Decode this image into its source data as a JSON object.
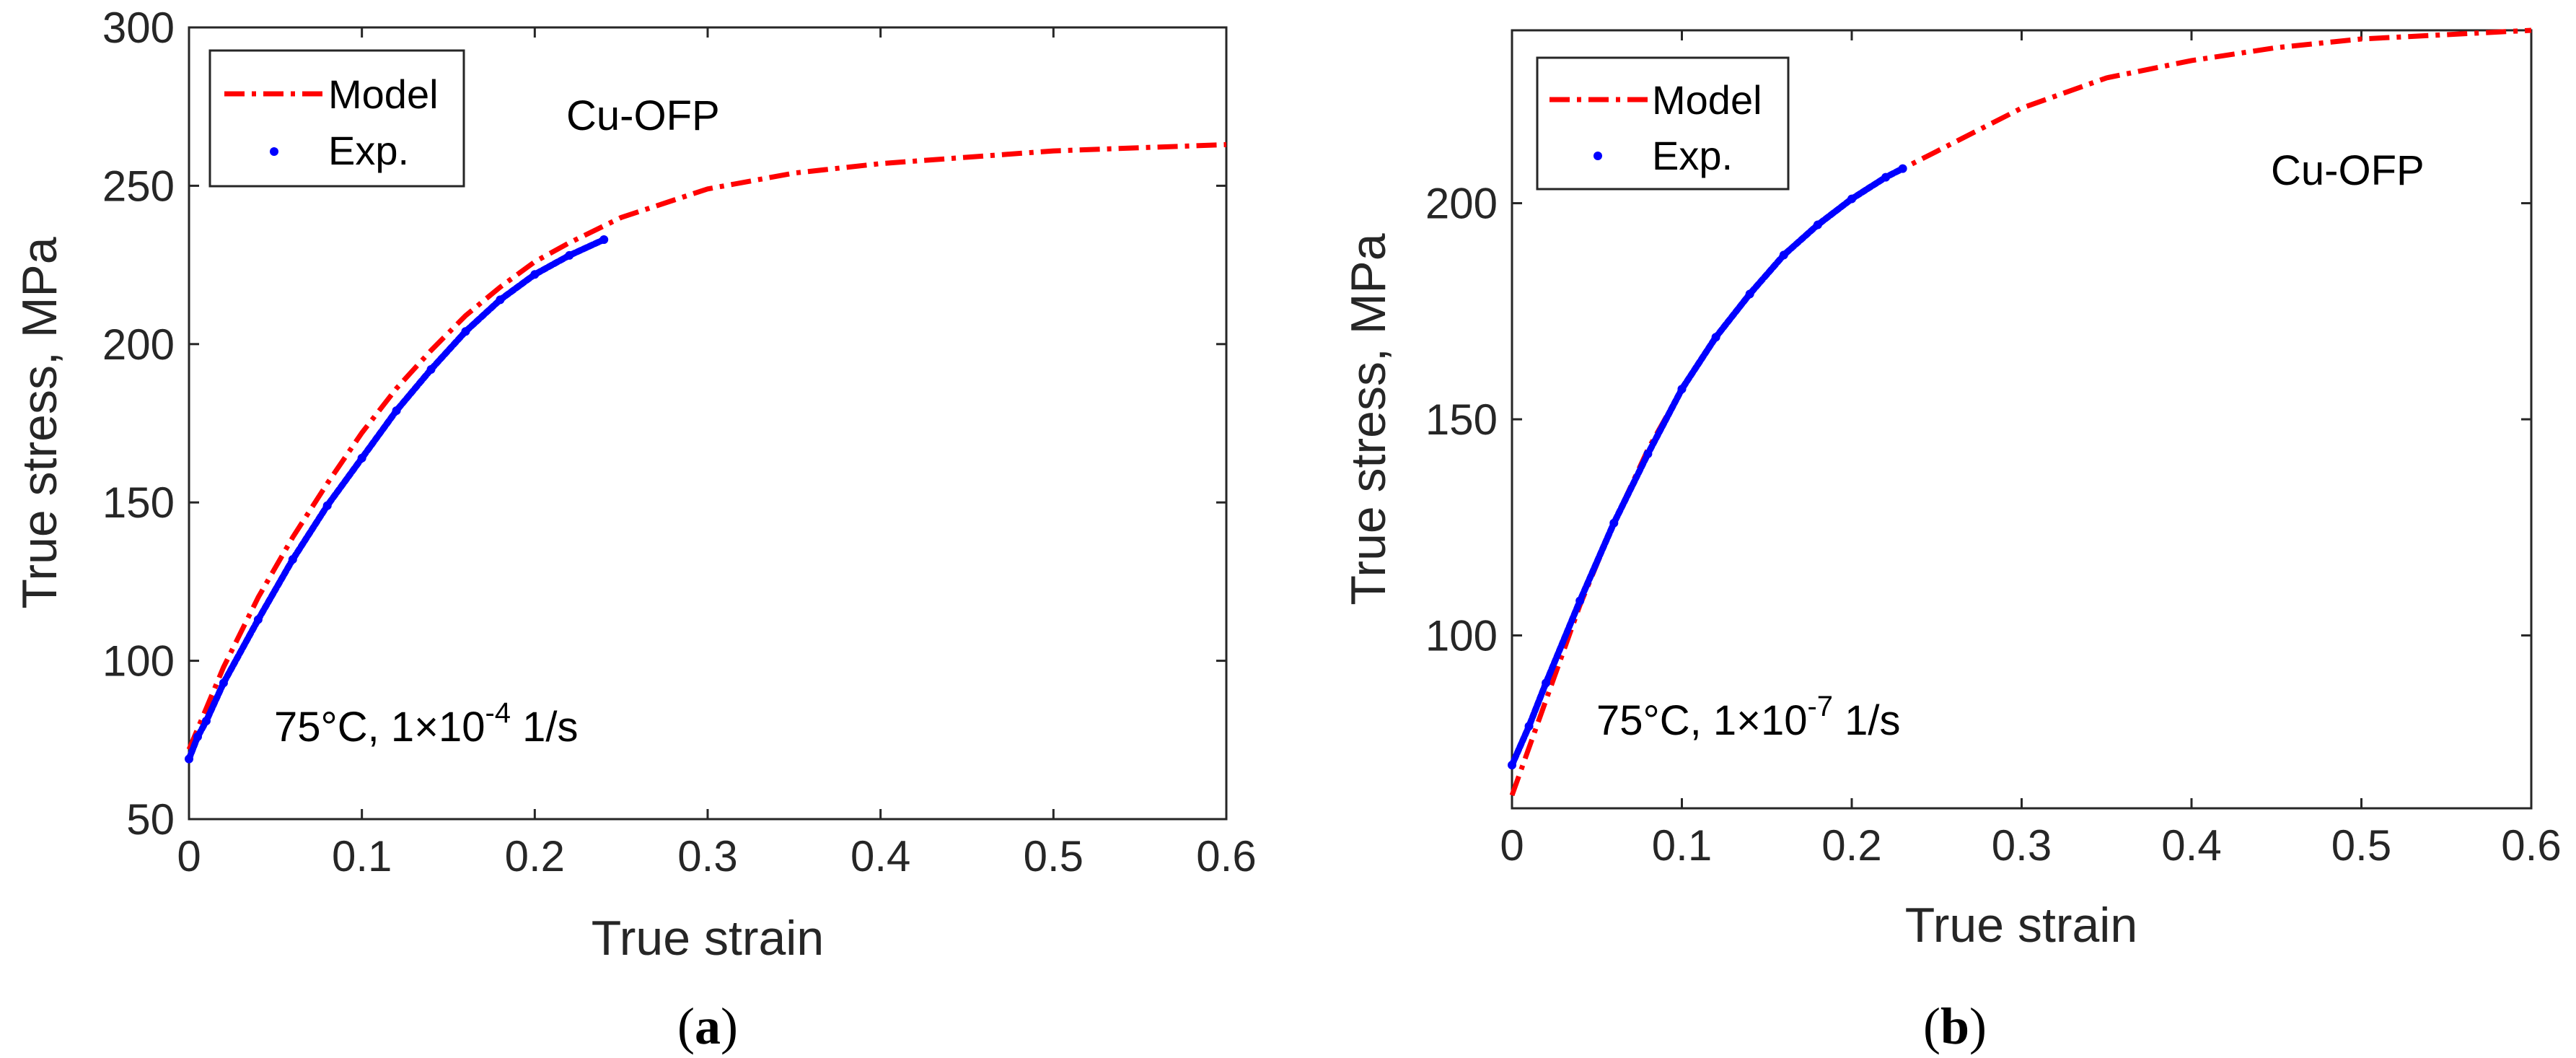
{
  "colors": {
    "model": "#ff0000",
    "exp": "#0000ff",
    "axis": "#262626"
  },
  "chart_data": [
    {
      "type": "line",
      "panel_label": "a",
      "panel_label_open": "(",
      "panel_label_close": ")",
      "xlabel": "True strain",
      "ylabel": "True stress, MPa",
      "xlim": [
        0,
        0.6
      ],
      "ylim": [
        50,
        300
      ],
      "xticks": [
        0,
        0.1,
        0.2,
        0.3,
        0.4,
        0.5,
        0.6
      ],
      "xtick_labels": [
        "0",
        "0.1",
        "0.2",
        "0.3",
        "0.4",
        "0.5",
        "0.6"
      ],
      "yticks": [
        50,
        100,
        150,
        200,
        250,
        300
      ],
      "ytick_labels": [
        "50",
        "100",
        "150",
        "200",
        "250",
        "300"
      ],
      "legend": {
        "location": "top-left",
        "entries": [
          "Model",
          "Exp."
        ]
      },
      "material": "Cu-OFP",
      "condition": {
        "prefix": "75°C, 1×10",
        "exponent": "-4",
        "suffix": " 1/s"
      },
      "series": [
        {
          "name": "Model",
          "style": "dash-dot",
          "x": [
            0,
            0.02,
            0.04,
            0.06,
            0.08,
            0.1,
            0.12,
            0.14,
            0.16,
            0.18,
            0.2,
            0.22,
            0.25,
            0.3,
            0.35,
            0.4,
            0.45,
            0.5,
            0.55,
            0.6
          ],
          "y": [
            72,
            98,
            120,
            139,
            156,
            172,
            186,
            198,
            209,
            218,
            226,
            232,
            240,
            249,
            254,
            257,
            259,
            261,
            262,
            263
          ]
        },
        {
          "name": "Exp.",
          "style": "dots",
          "x": [
            0,
            0.005,
            0.01,
            0.02,
            0.04,
            0.06,
            0.08,
            0.1,
            0.12,
            0.14,
            0.16,
            0.18,
            0.2,
            0.22,
            0.24
          ],
          "y": [
            69,
            76,
            81,
            93,
            113,
            132,
            149,
            164,
            179,
            192,
            204,
            214,
            222,
            228,
            233
          ]
        }
      ]
    },
    {
      "type": "line",
      "panel_label": "b",
      "panel_label_open": "(",
      "panel_label_close": ")",
      "xlabel": "True strain",
      "ylabel": "True stress, MPa",
      "xlim": [
        0,
        0.6
      ],
      "ylim": [
        60,
        240
      ],
      "xticks": [
        0,
        0.1,
        0.2,
        0.3,
        0.4,
        0.5,
        0.6
      ],
      "xtick_labels": [
        "0",
        "0.1",
        "0.2",
        "0.3",
        "0.4",
        "0.5",
        "0.6"
      ],
      "yticks": [
        100,
        150,
        200
      ],
      "ytick_labels": [
        "100",
        "150",
        "200"
      ],
      "legend": {
        "location": "top-left",
        "entries": [
          "Model",
          "Exp."
        ]
      },
      "material": "Cu-OFP",
      "condition": {
        "prefix": "75°C, 1×10",
        "exponent": "-7",
        "suffix": " 1/s"
      },
      "series": [
        {
          "name": "Model",
          "style": "dash-dot",
          "x": [
            0,
            0.02,
            0.04,
            0.06,
            0.08,
            0.1,
            0.12,
            0.14,
            0.16,
            0.18,
            0.2,
            0.22,
            0.25,
            0.3,
            0.35,
            0.4,
            0.45,
            0.5,
            0.55,
            0.6
          ],
          "y": [
            63,
            85,
            107,
            126,
            143,
            157,
            169,
            179,
            188,
            195,
            201,
            206,
            212,
            222,
            229,
            233,
            236,
            238,
            239,
            240
          ]
        },
        {
          "name": "Exp.",
          "style": "dots",
          "x": [
            0,
            0.01,
            0.02,
            0.04,
            0.06,
            0.08,
            0.1,
            0.12,
            0.14,
            0.16,
            0.18,
            0.2,
            0.22,
            0.23
          ],
          "y": [
            70,
            79,
            89,
            108,
            126,
            142,
            157,
            169,
            179,
            188,
            195,
            201,
            206,
            208
          ]
        }
      ]
    }
  ]
}
